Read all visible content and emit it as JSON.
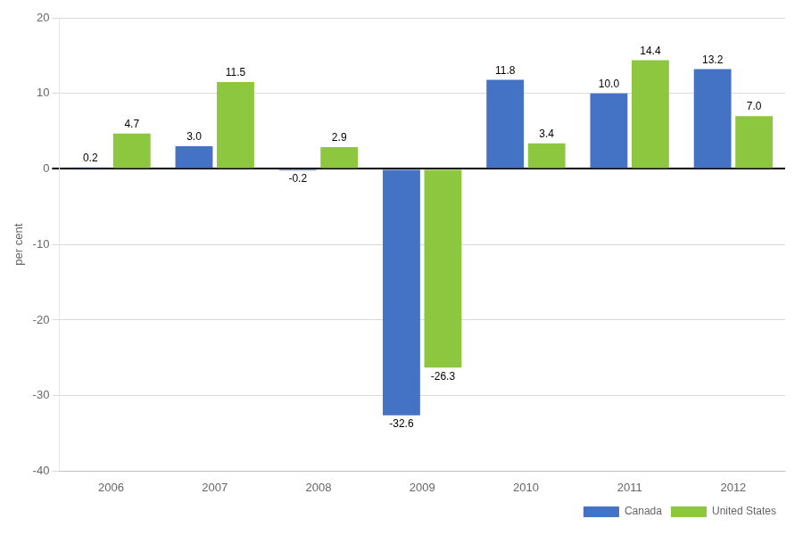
{
  "chart_data": {
    "type": "bar",
    "y_label": "per cent",
    "categories": [
      "2006",
      "2007",
      "2008",
      "2009",
      "2010",
      "2011",
      "2012"
    ],
    "series": [
      {
        "name": "Canada",
        "color": "#4472C4",
        "values": [
          0.2,
          3.0,
          -0.2,
          -32.6,
          11.8,
          10.0,
          13.2
        ],
        "value_labels": [
          "0.2",
          "3.0",
          "-0.2",
          "-32.6",
          "11.8",
          "10.0",
          "13.2"
        ]
      },
      {
        "name": "United States",
        "color": "#8DC63F",
        "values": [
          4.7,
          11.5,
          2.9,
          -26.3,
          3.4,
          14.4,
          7.0
        ],
        "value_labels": [
          "4.7",
          "11.5",
          "2.9",
          "-26.3",
          "3.4",
          "14.4",
          "7.0"
        ]
      }
    ],
    "ylim": [
      -40,
      20
    ],
    "yticks": [
      -40,
      -30,
      -20,
      -10,
      0,
      10,
      20
    ],
    "grid": true,
    "legend": "lower right",
    "data_labels": true
  }
}
